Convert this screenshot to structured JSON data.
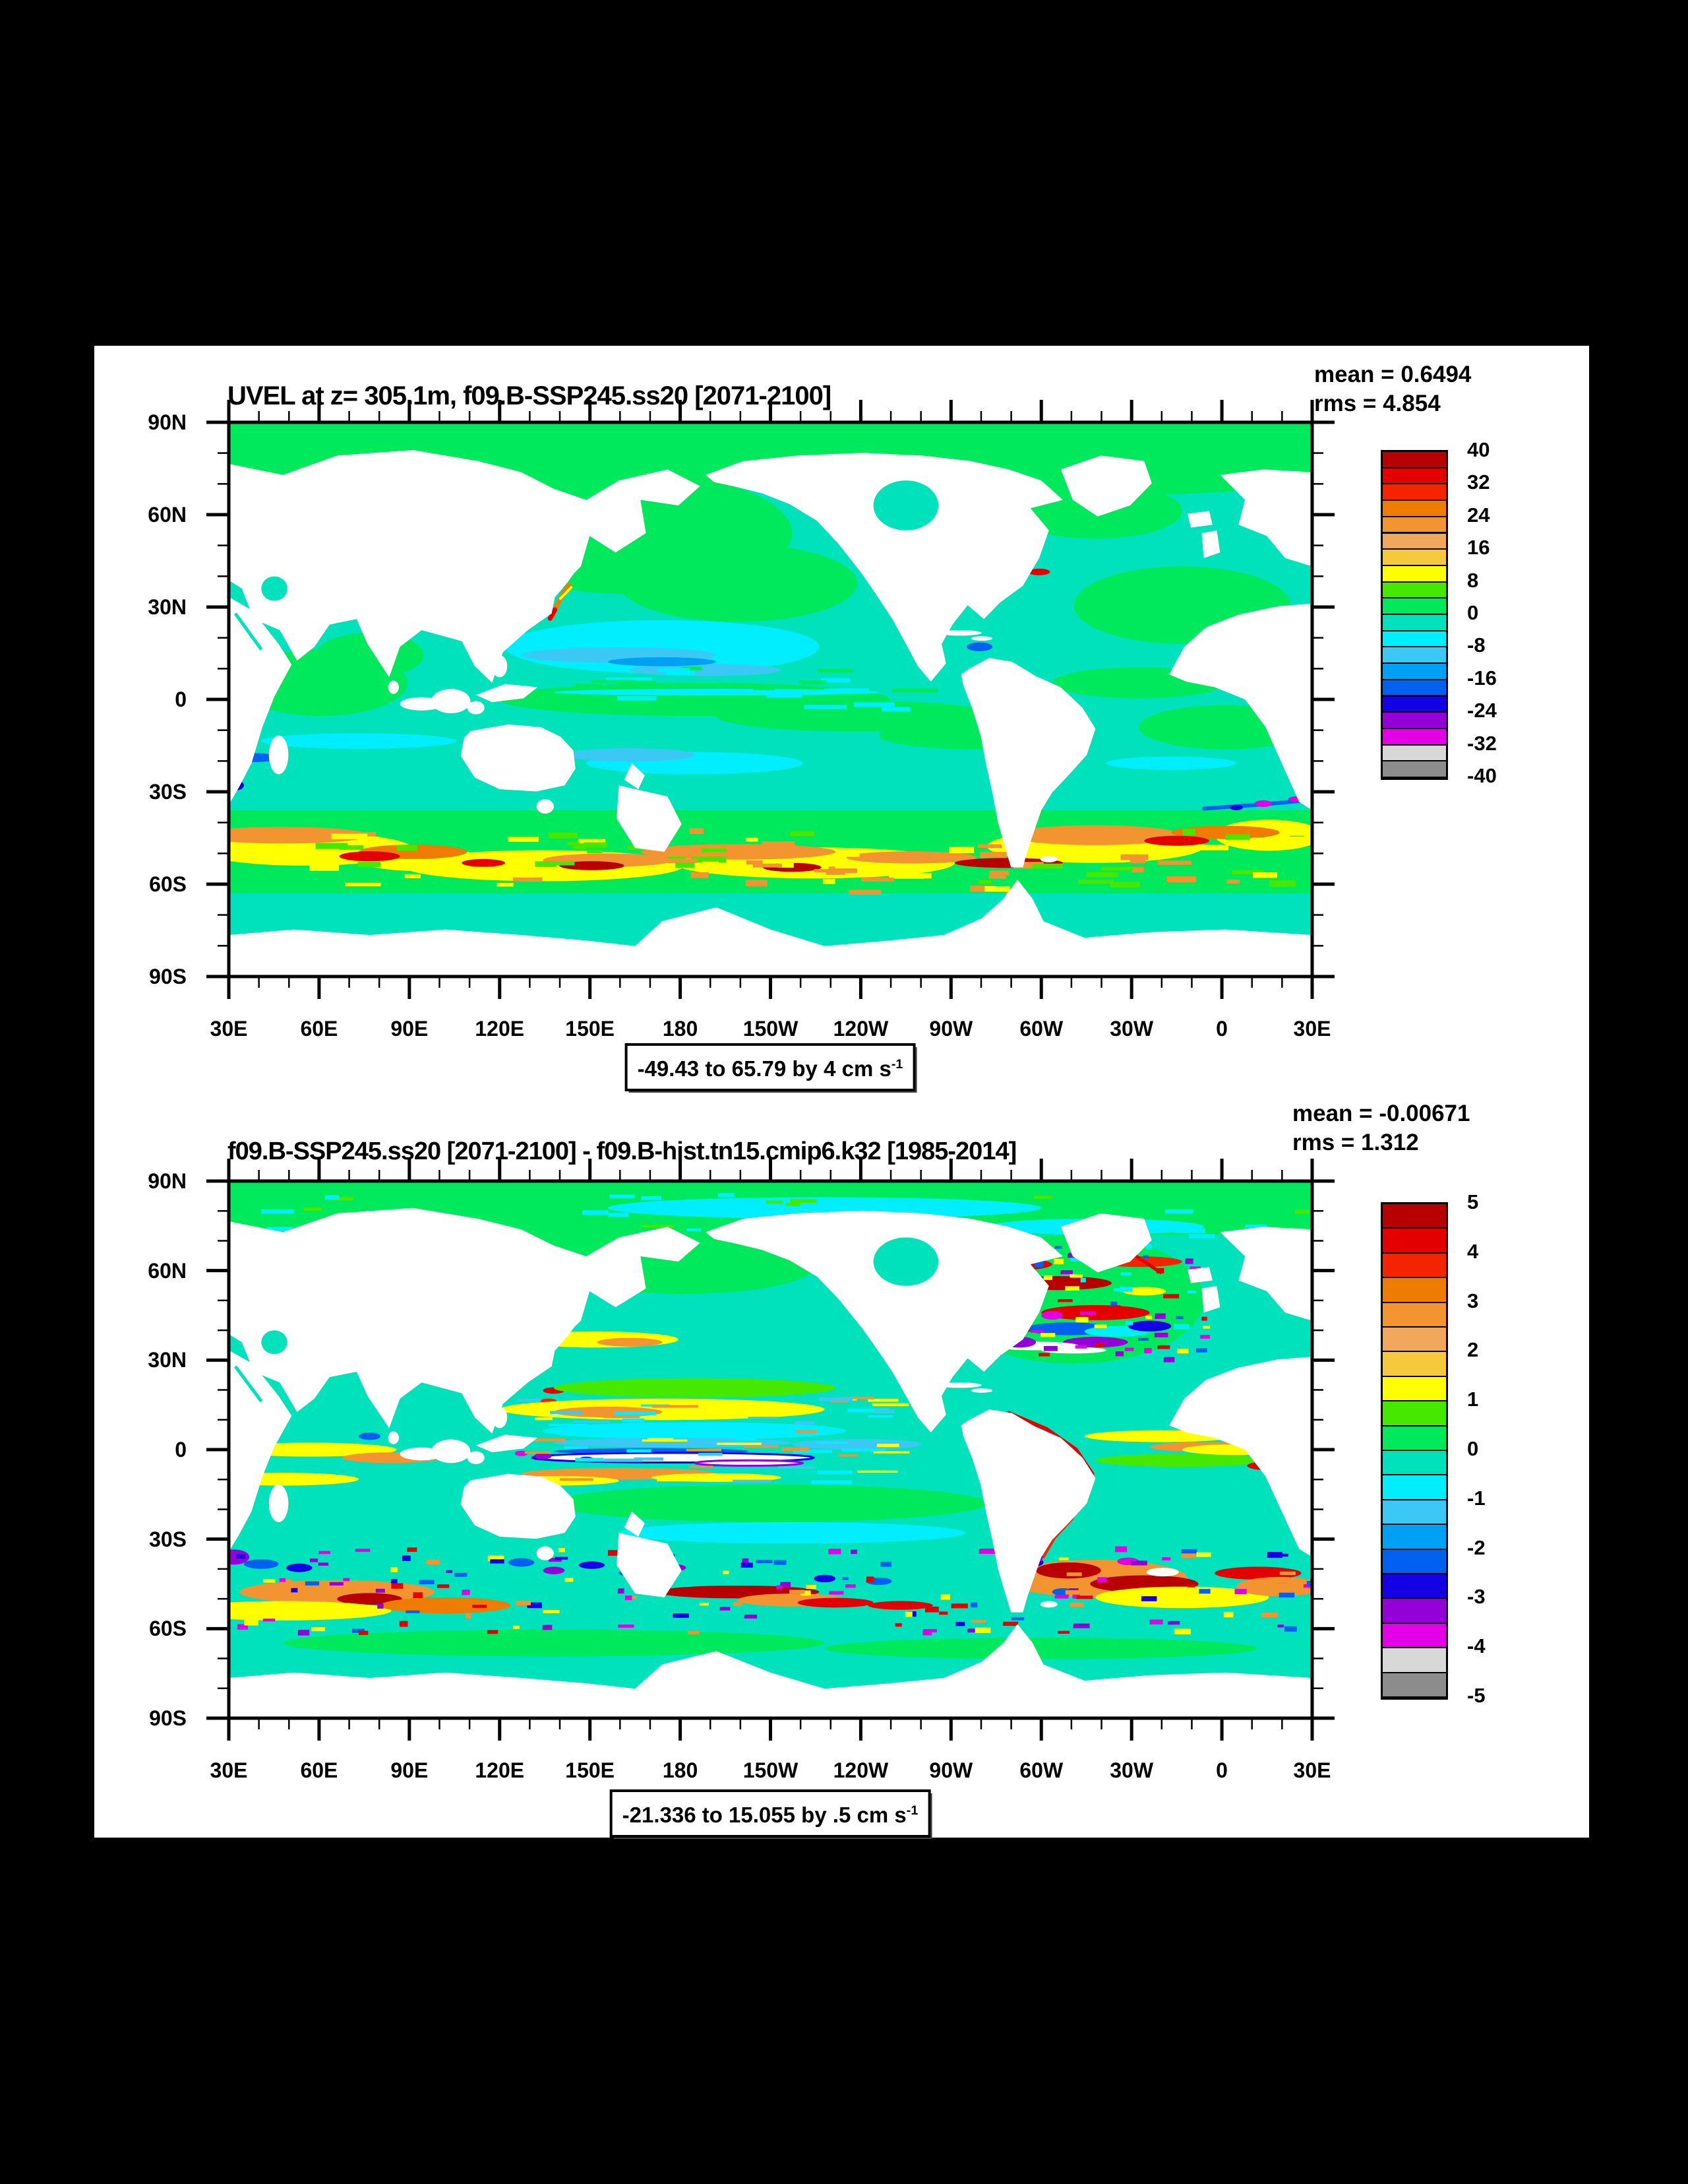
{
  "palette": [
    "#b80000",
    "#e40000",
    "#f42400",
    "#ee7c00",
    "#f29430",
    "#f2a85c",
    "#f6c83c",
    "#ffff00",
    "#46e800",
    "#00e85c",
    "#00e2bc",
    "#00eeff",
    "#3cc8f4",
    "#00a0f4",
    "#0060f0",
    "#1400e4",
    "#9400d8",
    "#e400e4",
    "#d8d8d8",
    "#8c8c8c"
  ],
  "plots": [
    {
      "title": "UVEL at z= 305.1m, f09.B-SSP245.ss20 [2071-2100]",
      "mean_label": "mean = 0.6494",
      "rms_label": "rms = 4.854",
      "caption_text": "-49.43 to 65.79 by 4 cm s",
      "caption_sup": "-1",
      "lat_labels": [
        "90N",
        "60N",
        "30N",
        "0",
        "30S",
        "60S",
        "90S"
      ],
      "lon_labels": [
        "30E",
        "60E",
        "90E",
        "120E",
        "150E",
        "180",
        "150W",
        "120W",
        "90W",
        "60W",
        "30W",
        "0",
        "30E"
      ],
      "colorbar_labels": [
        "40",
        "32",
        "24",
        "16",
        "8",
        "0",
        "-8",
        "-16",
        "-24",
        "-32",
        "-40"
      ]
    },
    {
      "title": "f09.B-SSP245.ss20 [2071-2100] - f09.B-hist.tn15.cmip6.k32 [1985-2014]",
      "mean_label": "mean = -0.00671",
      "rms_label": "rms = 1.312",
      "caption_text": "-21.336 to 15.055 by .5 cm s",
      "caption_sup": "-1",
      "lat_labels": [
        "90N",
        "60N",
        "30N",
        "0",
        "30S",
        "60S",
        "90S"
      ],
      "lon_labels": [
        "30E",
        "60E",
        "90E",
        "120E",
        "150E",
        "180",
        "150W",
        "120W",
        "90W",
        "60W",
        "30W",
        "0",
        "30E"
      ],
      "colorbar_labels": [
        "5",
        "4",
        "3",
        "2",
        "1",
        "0",
        "-1",
        "-2",
        "-3",
        "-4",
        "-5"
      ]
    }
  ],
  "chart_data": [
    {
      "type": "heatmap",
      "title": "UVEL at z= 305.1m, f09.B-SSP245.ss20 [2071-2100]",
      "variable": "UVEL",
      "depth_m": 305.1,
      "case": "f09.B-SSP245.ss20",
      "period": "2071-2100",
      "mean": 0.6494,
      "rms": 4.854,
      "units": "cm s-1",
      "field_min": -49.43,
      "field_max": 65.79,
      "contour_interval": 4,
      "colorbar_ticks": [
        40,
        32,
        24,
        16,
        8,
        0,
        -8,
        -16,
        -24,
        -32,
        -40
      ],
      "lat_ticks": [
        "90N",
        "60N",
        "30N",
        "0",
        "30S",
        "60S",
        "90S"
      ],
      "lon_ticks": [
        "30E",
        "60E",
        "90E",
        "120E",
        "150E",
        "180",
        "150W",
        "120W",
        "90W",
        "60W",
        "30W",
        "0",
        "30E"
      ],
      "legend_position": "right",
      "grid": false
    },
    {
      "type": "heatmap",
      "title": "f09.B-SSP245.ss20 [2071-2100] - f09.B-hist.tn15.cmip6.k32 [1985-2014]",
      "variable": "UVEL difference",
      "case_a": "f09.B-SSP245.ss20",
      "period_a": "2071-2100",
      "case_b": "f09.B-hist.tn15.cmip6.k32",
      "period_b": "1985-2014",
      "mean": -0.00671,
      "rms": 1.312,
      "units": "cm s-1",
      "field_min": -21.336,
      "field_max": 15.055,
      "contour_interval": 0.5,
      "colorbar_ticks": [
        5,
        4,
        3,
        2,
        1,
        0,
        -1,
        -2,
        -3,
        -4,
        -5
      ],
      "lat_ticks": [
        "90N",
        "60N",
        "30N",
        "0",
        "30S",
        "60S",
        "90S"
      ],
      "lon_ticks": [
        "30E",
        "60E",
        "90E",
        "120E",
        "150E",
        "180",
        "150W",
        "120W",
        "90W",
        "60W",
        "30W",
        "0",
        "30E"
      ],
      "legend_position": "right",
      "grid": false
    }
  ]
}
